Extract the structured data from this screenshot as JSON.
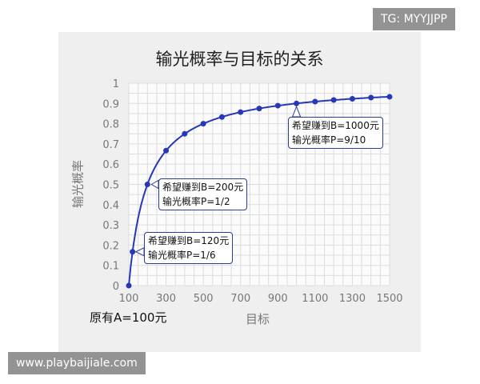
{
  "watermarks": {
    "top_right": "TG: MYYJJPP",
    "bottom_left": "www.playbaijiale.com"
  },
  "chart_data": {
    "type": "line",
    "title": "输光概率与目标的关系",
    "xlabel": "目标",
    "ylabel": "输光概率",
    "note": "原有A=100元",
    "x": [
      100,
      120,
      200,
      300,
      400,
      500,
      600,
      700,
      800,
      900,
      1000,
      1100,
      1200,
      1300,
      1400,
      1500
    ],
    "values": [
      0,
      0.167,
      0.5,
      0.667,
      0.75,
      0.8,
      0.833,
      0.857,
      0.875,
      0.889,
      0.9,
      0.909,
      0.917,
      0.923,
      0.929,
      0.933
    ],
    "xlim": [
      100,
      1500
    ],
    "ylim": [
      0,
      1
    ],
    "xticks": [
      "100",
      "300",
      "500",
      "700",
      "900",
      "1100",
      "1300",
      "1500"
    ],
    "yticks": [
      "0",
      "0.1",
      "0.2",
      "0.3",
      "0.4",
      "0.5",
      "0.6",
      "0.7",
      "0.8",
      "0.9",
      "1"
    ],
    "grid": true,
    "line_color": "#2638b8",
    "annotations": [
      {
        "x": 120,
        "line1": "希望赚到B=120元",
        "line2": "输光概率P=1/6"
      },
      {
        "x": 200,
        "line1": "希望赚到B=200元",
        "line2": "输光概率P=1/2"
      },
      {
        "x": 1000,
        "line1": "希望赚到B=1000元",
        "line2": "输光概率P=9/10"
      }
    ]
  }
}
